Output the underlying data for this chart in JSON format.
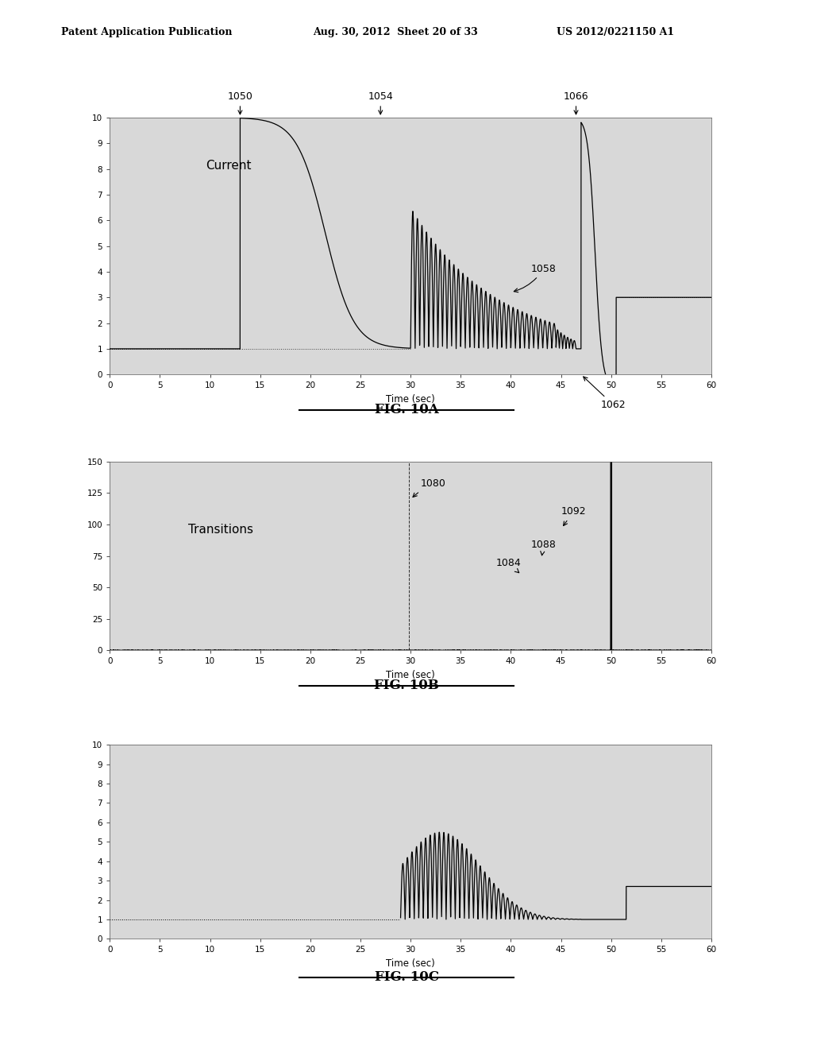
{
  "header_left": "Patent Application Publication",
  "header_mid": "Aug. 30, 2012  Sheet 20 of 33",
  "header_right": "US 2012/0221150 A1",
  "bg_color": "#ffffff",
  "plot_bg": "#e8e8e8",
  "fig10a_title": "FIG. 10A",
  "fig10b_title": "FIG. 10B",
  "fig10c_title": "FIG. 10C",
  "fig10a_label": "Current",
  "fig10b_label": "Transitions",
  "note1050": "1050",
  "note1054": "1054",
  "note1058": "1058",
  "note1062": "1062",
  "note1066": "1066",
  "note1080": "1080",
  "note1084": "1084",
  "note1088": "1088",
  "note1092": "1092"
}
